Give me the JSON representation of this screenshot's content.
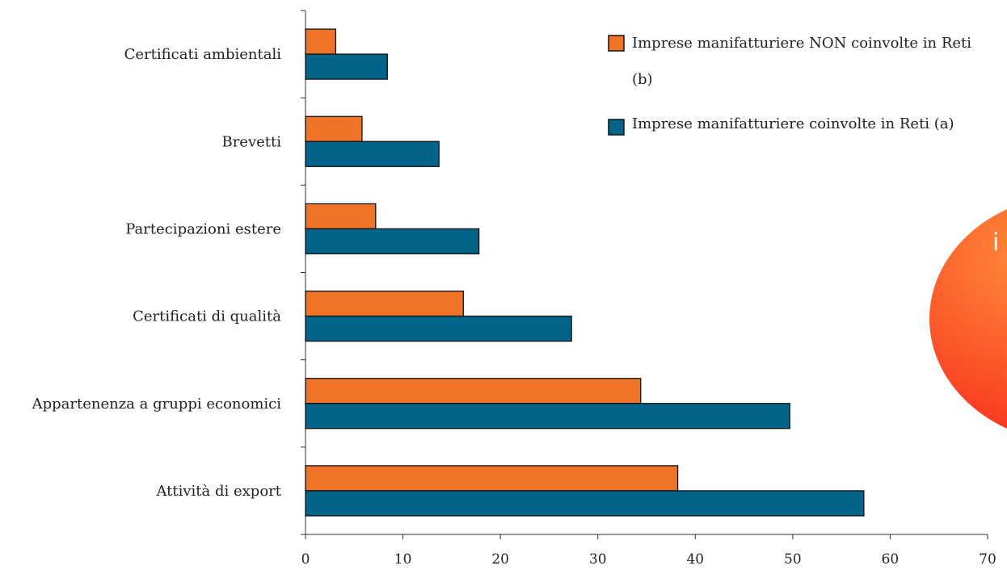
{
  "chart_data": {
    "type": "bar",
    "orientation": "horizontal",
    "categories": [
      "Attività di export",
      "Appartenenza a gruppi economici",
      "Certificati di qualità",
      "Partecipazioni estere",
      "Brevetti",
      "Certificati ambientali"
    ],
    "series": [
      {
        "name": "Imprese manifatturiere coinvolte in Reti (a)",
        "color": "#03648A",
        "values": [
          57.3,
          49.7,
          27.3,
          17.8,
          13.7,
          8.4
        ]
      },
      {
        "name_lines": [
          "Imprese manifatturiere NON coinvolte in Reti",
          "(b)"
        ],
        "color": "#F07427",
        "values": [
          38.2,
          34.4,
          16.2,
          7.2,
          5.8,
          3.1
        ]
      }
    ],
    "xlim": [
      0,
      70
    ],
    "xticks": [
      "0",
      "10",
      "20",
      "30",
      "40",
      "50",
      "60",
      "70"
    ],
    "title": "",
    "xlabel": "",
    "ylabel": "",
    "grid": false,
    "legend_position": "top-right"
  },
  "decoration": {
    "partial_letter": "i",
    "colors": {
      "light": "#FF8C3A",
      "dark": "#F7281A"
    }
  }
}
